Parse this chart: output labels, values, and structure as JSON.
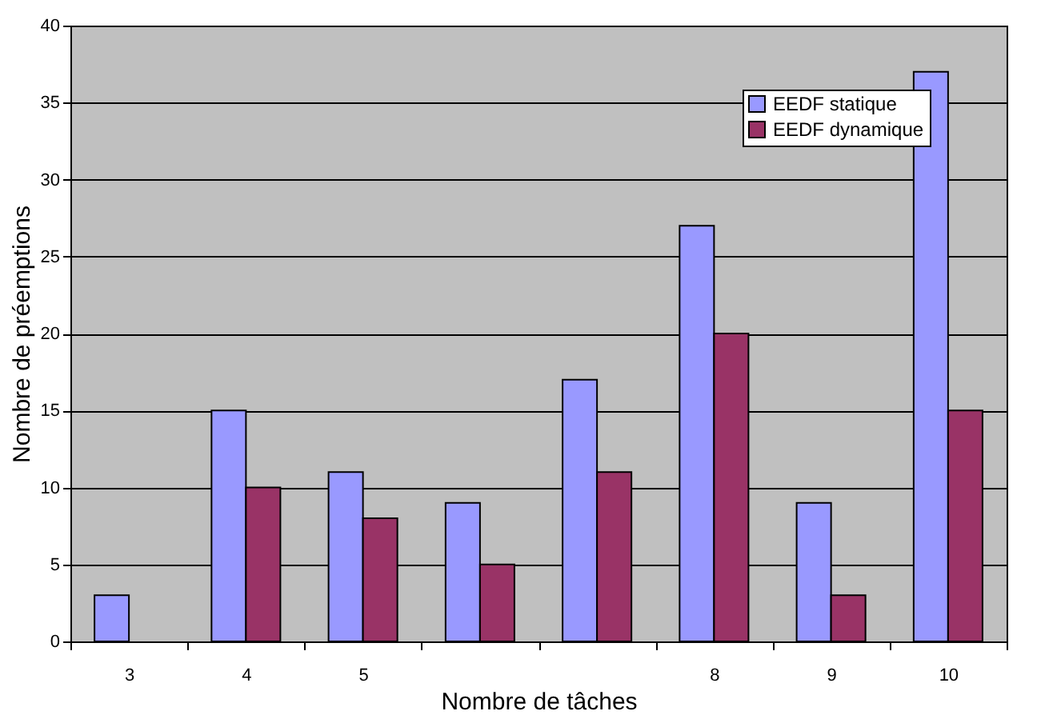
{
  "chart_data": {
    "type": "bar",
    "xlabel": "Nombre de tâches",
    "ylabel": "Nombre de préemptions",
    "categories": [
      "3",
      "4",
      "5",
      null,
      null,
      "8",
      "9",
      "10"
    ],
    "series": [
      {
        "name": "EEDF statique",
        "color": "#9999ff",
        "values": [
          3,
          15,
          11,
          9,
          17,
          27,
          9,
          37
        ]
      },
      {
        "name": "EEDF dynamique",
        "color": "#993366",
        "values": [
          null,
          10,
          8,
          5,
          11,
          20,
          3,
          15
        ]
      }
    ],
    "ylim": [
      0,
      40
    ],
    "yticks": [
      0,
      5,
      10,
      15,
      20,
      25,
      30,
      35,
      40
    ],
    "grid": "y",
    "legend": "top right"
  }
}
